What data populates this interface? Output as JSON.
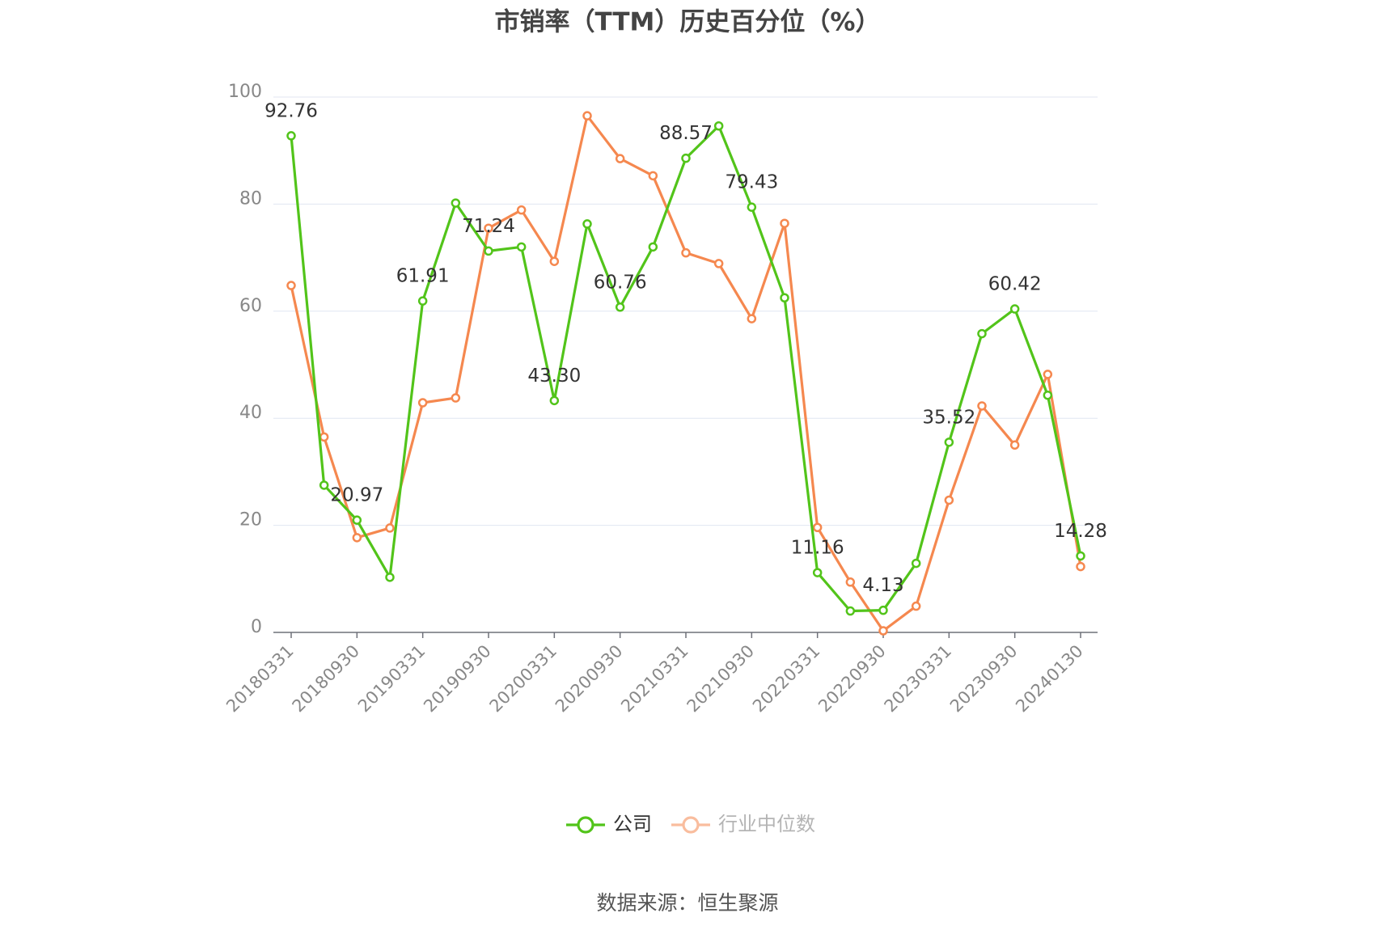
{
  "chart_data": {
    "type": "line",
    "title": "市销率（TTM）历史百分位（%）",
    "source": "数据来源：恒生聚源",
    "categories": [
      "20180331",
      null,
      "20180930",
      null,
      "20190331",
      null,
      "20190930",
      null,
      "20200331",
      null,
      "20200930",
      null,
      "20210331",
      null,
      "20210930",
      null,
      "20220331",
      null,
      "20220930",
      null,
      "20230331",
      null,
      "20230930",
      null,
      "20240130"
    ],
    "series": [
      {
        "name": "公司",
        "color": "#52c41a",
        "values": [
          92.76,
          27.5,
          20.97,
          10.3,
          61.91,
          80.2,
          71.24,
          72.0,
          43.3,
          76.3,
          60.76,
          72.0,
          88.57,
          94.6,
          79.43,
          62.5,
          11.16,
          4.0,
          4.13,
          12.9,
          35.52,
          55.8,
          60.42,
          44.3,
          14.28
        ],
        "value_labels": [
          "92.76",
          null,
          "20.97",
          null,
          "61.91",
          null,
          "71.24",
          null,
          "43.30",
          null,
          "60.76",
          null,
          "88.57",
          null,
          "79.43",
          null,
          "11.16",
          null,
          "4.13",
          null,
          "35.52",
          null,
          "60.42",
          null,
          "14.28"
        ]
      },
      {
        "name": "行业中位数",
        "color": "#f5884f",
        "values": [
          64.8,
          36.5,
          17.7,
          19.5,
          42.9,
          43.8,
          75.5,
          78.9,
          69.3,
          96.5,
          88.5,
          85.3,
          70.9,
          68.9,
          58.6,
          76.4,
          19.6,
          9.4,
          0.3,
          4.9,
          24.7,
          42.3,
          35.0,
          48.2,
          12.3
        ]
      }
    ],
    "ylim": [
      0,
      100
    ],
    "yticks": [
      0,
      20,
      40,
      60,
      80,
      100
    ],
    "grid": true,
    "legend": "bottom"
  }
}
